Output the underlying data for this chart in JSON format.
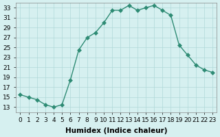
{
  "x": [
    0,
    1,
    2,
    3,
    4,
    5,
    6,
    7,
    8,
    9,
    10,
    11,
    12,
    13,
    14,
    15,
    16,
    17,
    18,
    19,
    20,
    21,
    22,
    23
  ],
  "y": [
    15.5,
    15.0,
    14.5,
    13.5,
    13.0,
    13.5,
    18.5,
    24.5,
    27.0,
    28.0,
    30.0,
    32.5,
    32.5,
    33.5,
    32.5,
    33.0,
    33.5,
    32.5,
    31.5,
    25.5,
    23.5,
    21.5,
    20.5,
    20.0
  ],
  "line_color": "#2e8b74",
  "marker": "D",
  "marker_size": 3,
  "bg_color": "#d6f0f0",
  "grid_color": "#b0d8d8",
  "xlabel": "Humidex (Indice chaleur)",
  "xlim": [
    -0.5,
    23.5
  ],
  "ylim": [
    12,
    34
  ],
  "yticks": [
    13,
    15,
    17,
    19,
    21,
    23,
    25,
    27,
    29,
    31,
    33
  ],
  "xticks": [
    0,
    1,
    2,
    3,
    4,
    5,
    6,
    7,
    8,
    9,
    10,
    11,
    12,
    13,
    14,
    15,
    16,
    17,
    18,
    19,
    20,
    21,
    22,
    23
  ],
  "xtick_labels": [
    "0",
    "1",
    "2",
    "3",
    "4",
    "5",
    "6",
    "7",
    "8",
    "9",
    "10",
    "11",
    "12",
    "13",
    "14",
    "15",
    "16",
    "17",
    "18",
    "19",
    "20",
    "21",
    "22",
    "23"
  ],
  "label_fontsize": 7.5,
  "tick_fontsize": 6.5
}
